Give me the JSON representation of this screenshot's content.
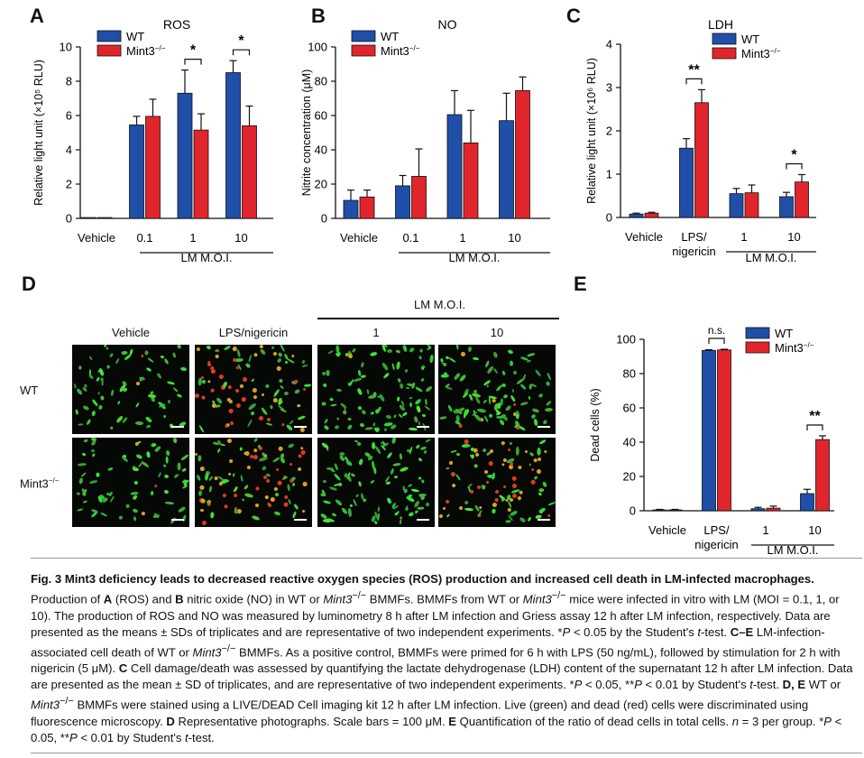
{
  "panels": {
    "A": "A",
    "B": "B",
    "C": "C",
    "D": "D",
    "E": "E"
  },
  "legend": {
    "wt": "WT",
    "mint3": "Mint3",
    "mint3_sup": "−/−"
  },
  "colors": {
    "wt": "#1f4fa8",
    "mint3": "#e0262c",
    "text": "#111111"
  },
  "chart_data": [
    {
      "id": "A",
      "type": "bar",
      "title": "ROS",
      "ylabel": "Relative light unit (×10⁵ RLU)",
      "ylim": [
        0,
        10
      ],
      "yticks": [
        0,
        2,
        4,
        6,
        8,
        10
      ],
      "categories": [
        "Vehicle",
        "0.1",
        "1",
        "10"
      ],
      "group_label": "LM M.O.I.",
      "series": [
        {
          "name": "WT",
          "values": [
            0.05,
            5.45,
            7.3,
            8.5
          ],
          "errors": [
            0,
            0.5,
            1.35,
            0.7
          ]
        },
        {
          "name": "Mint3−/−",
          "values": [
            0.05,
            5.95,
            5.15,
            5.4
          ],
          "errors": [
            0,
            1.0,
            0.95,
            1.15
          ]
        }
      ],
      "significance": [
        {
          "category": "1",
          "label": "*"
        },
        {
          "category": "10",
          "label": "*"
        }
      ]
    },
    {
      "id": "B",
      "type": "bar",
      "title": "NO",
      "ylabel": "Nitrite concentration (μM)",
      "ylim": [
        0,
        100
      ],
      "yticks": [
        0,
        20,
        40,
        60,
        80,
        100
      ],
      "categories": [
        "Vehicle",
        "0.1",
        "1",
        "10"
      ],
      "group_label": "LM M.O.I.",
      "series": [
        {
          "name": "WT",
          "values": [
            10.5,
            19,
            60.5,
            57
          ],
          "errors": [
            6,
            6,
            14,
            16
          ]
        },
        {
          "name": "Mint3−/−",
          "values": [
            12.5,
            24.5,
            44,
            74.5
          ],
          "errors": [
            4,
            16,
            19,
            8
          ]
        }
      ],
      "significance": []
    },
    {
      "id": "C",
      "type": "bar",
      "title": "LDH",
      "ylabel": "Relative light unit (×10⁶ RLU)",
      "ylim": [
        0,
        4
      ],
      "yticks": [
        0,
        1,
        2,
        3,
        4
      ],
      "categories": [
        "Vehicle",
        "LPS/\nnigericin",
        "1",
        "10"
      ],
      "group_label": "LM M.O.I.",
      "series": [
        {
          "name": "WT",
          "values": [
            0.08,
            1.6,
            0.55,
            0.48
          ],
          "errors": [
            0.02,
            0.22,
            0.12,
            0.1
          ]
        },
        {
          "name": "Mint3−/−",
          "values": [
            0.1,
            2.65,
            0.57,
            0.82
          ],
          "errors": [
            0.02,
            0.3,
            0.18,
            0.17
          ]
        }
      ],
      "significance": [
        {
          "category": "LPS/\nnigericin",
          "label": "**"
        },
        {
          "category": "10",
          "label": "*"
        }
      ]
    },
    {
      "id": "E",
      "type": "bar",
      "title": "",
      "ylabel": "Dead cells (%)",
      "ylim": [
        0,
        100
      ],
      "yticks": [
        0,
        20,
        40,
        60,
        80,
        100
      ],
      "categories": [
        "Vehicle",
        "LPS/\nnigericin",
        "1",
        "10"
      ],
      "group_label": "LM M.O.I.",
      "series": [
        {
          "name": "WT",
          "values": [
            0.5,
            93.5,
            1.2,
            10
          ],
          "errors": [
            0.3,
            0.4,
            0.8,
            2.5
          ]
        },
        {
          "name": "Mint3−/−",
          "values": [
            0.5,
            93.8,
            1.5,
            41.5
          ],
          "errors": [
            0.3,
            0.4,
            1.2,
            2.2
          ]
        }
      ],
      "significance": [
        {
          "category": "LPS/\nnigericin",
          "label": "n.s."
        },
        {
          "category": "10",
          "label": "**"
        }
      ]
    }
  ],
  "micrographs": {
    "group_label": "LM M.O.I.",
    "columns": [
      "Vehicle",
      "LPS/nigericin",
      "1",
      "10"
    ],
    "rows": [
      "WT",
      "Mint3"
    ],
    "row_sup": "−/−",
    "red_fraction": [
      [
        0.02,
        0.45,
        0.01,
        0.08
      ],
      [
        0.02,
        0.45,
        0.01,
        0.4
      ]
    ]
  },
  "caption": {
    "title": "Fig. 3 Mint3 deficiency leads to decreased reactive oxygen species (ROS) production and increased cell death in LM-infected macrophages.",
    "s1a": " Production of ",
    "s1b": "A",
    "s1c": " (ROS) and ",
    "s1d": "B",
    "s1e": " nitric oxide (NO) in WT or ",
    "mint": "Mint3",
    "sup": "−/−",
    "s1f": " BMMFs. BMMFs from WT or ",
    "s1g": " mice were infected in vitro with LM (MOI = 0.1, 1, or 10). The production of ROS and NO was measured by luminometry 8 h after LM infection and Griess assay 12 h after LM infection, respectively. Data are presented as the means ± SDs of triplicates and are representative of two independent experiments. *",
    "p": "P",
    "s1h": " < 0.05 by the Student's ",
    "t": "t",
    "s1i": "-test. ",
    "ce": "C–E",
    "s2a": " LM-infection-associated cell death of WT or ",
    "s2b": " BMMFs. As a positive control, BMMFs were primed for 6 h with LPS (50 ng/mL), followed by stimulation for 2 h with nigericin (5 μM). ",
    "c": "C",
    "s2c": " Cell damage/death was assessed by quantifying the lactate dehydrogenase (LDH) content of the supernatant 12 h after LM infection. Data are presented as the mean ± SD of triplicates, and are representative of two independent experiments. *",
    "s2d": " < 0.05, **",
    "s2e": " < 0.01 by Student's ",
    "s2f": "-test. ",
    "de": "D, E",
    "s3a": " WT or ",
    "s3b": " BMMFs were stained using a LIVE/DEAD Cell imaging kit 12 h after LM infection. Live (green) and dead (red) cells were discriminated using fluorescence microscopy. ",
    "d": "D",
    "s3c": " Representative photographs. Scale bars = 100 μM. ",
    "e": "E",
    "s3d": " Quantification of the ratio of dead cells in total cells. ",
    "n": "n",
    "s3e": " = 3 per group. *",
    "s3f": " < 0.05, **",
    "s3g": " < 0.01 by Student's ",
    "s3h": "-test."
  }
}
